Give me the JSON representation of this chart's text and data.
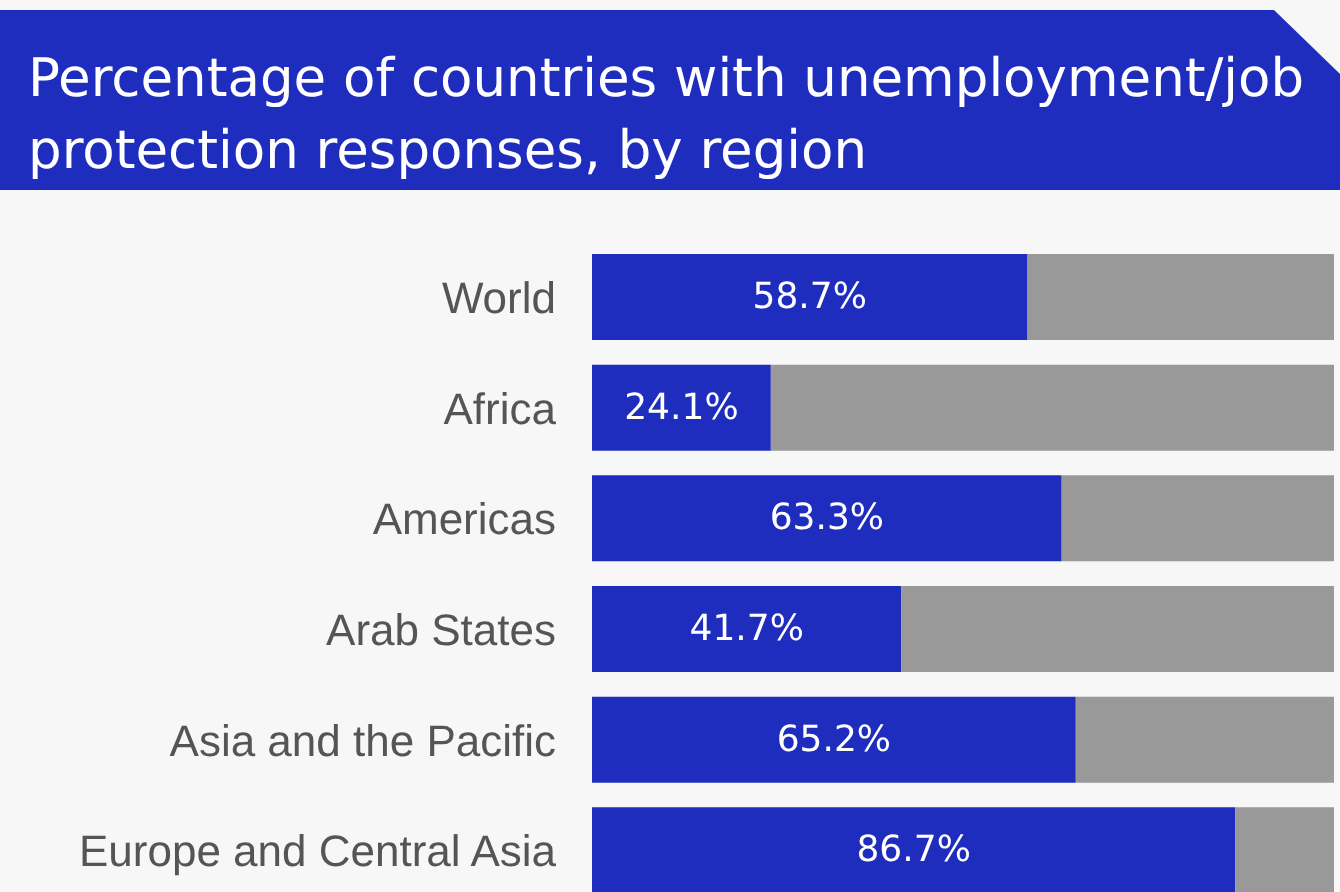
{
  "chart_data": {
    "type": "bar",
    "orientation": "horizontal",
    "stacked": true,
    "title": "Percentage of countries with unemployment/job protection responses, by region",
    "categories": [
      "World",
      "Africa",
      "Americas",
      "Arab States",
      "Asia and the Pacific",
      "Europe and Central Asia"
    ],
    "series": [
      {
        "color": "#1f2dbf",
        "values": [
          58.7,
          24.1,
          63.3,
          41.7,
          65.2,
          86.7
        ],
        "value_labels": [
          "58.7%",
          "24.1%",
          "63.3%",
          "41.7%",
          "65.2%",
          "86.7%"
        ]
      },
      {
        "color": "#999999",
        "values": [
          41.3,
          75.9,
          36.7,
          58.3,
          34.8,
          13.3
        ]
      }
    ],
    "xlim": [
      0,
      100
    ],
    "tick_labels": "y"
  }
}
